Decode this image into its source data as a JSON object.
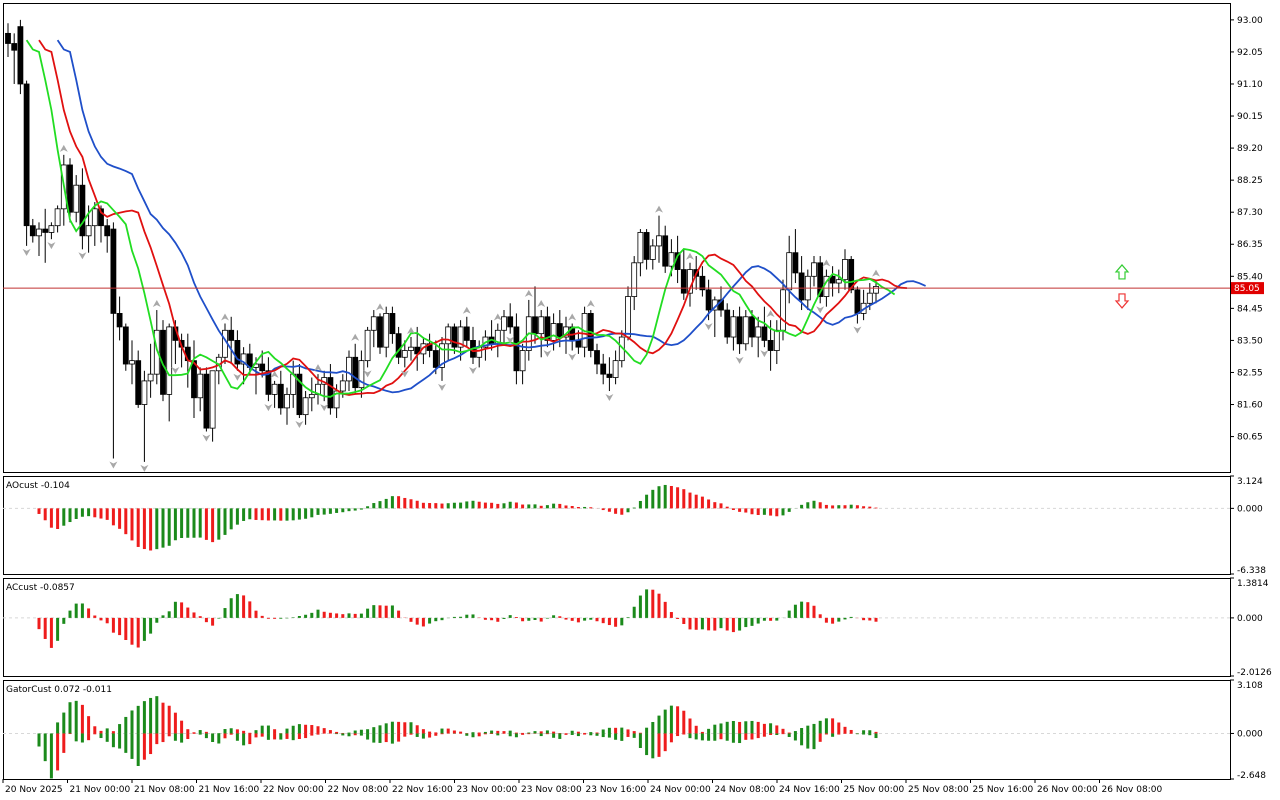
{
  "chart_data": {
    "type": "candlestick",
    "symbol_current_price": "85.05",
    "colors": {
      "bull_body": "#ffffff",
      "bear_body": "#000000",
      "wick": "#000000",
      "alligator_jaw": "#1f4fc9",
      "alligator_teeth": "#e01010",
      "alligator_lips": "#22dd22",
      "current_price_line": "#c03030",
      "price_tag_bg": "#e00000",
      "histo_up": "#1b8a1b",
      "histo_down": "#ee1c1c",
      "fractal_arrow": "#a8a8a8",
      "signal_up": "#33cc33",
      "signal_down": "#ee3333"
    },
    "price_axis_ticks": [
      "93.00",
      "92.05",
      "91.10",
      "90.15",
      "89.20",
      "88.25",
      "87.30",
      "86.35",
      "85.40",
      "84.45",
      "83.50",
      "82.55",
      "81.60",
      "80.65"
    ],
    "price_range": [
      79.6,
      93.5
    ],
    "time_axis_ticks": [
      "20 Nov 2025",
      "21 Nov 00:00",
      "21 Nov 08:00",
      "21 Nov 16:00",
      "22 Nov 00:00",
      "22 Nov 08:00",
      "22 Nov 16:00",
      "23 Nov 00:00",
      "23 Nov 08:00",
      "23 Nov 16:00",
      "24 Nov 00:00",
      "24 Nov 08:00",
      "24 Nov 16:00",
      "25 Nov 00:00",
      "25 Nov 08:00",
      "25 Nov 16:00",
      "26 Nov 00:00",
      "26 Nov 08:00"
    ],
    "candles": [
      {
        "o": 92.6,
        "h": 92.9,
        "l": 91.9,
        "c": 92.3
      },
      {
        "o": 92.3,
        "h": 92.6,
        "l": 91.1,
        "c": 92.1
      },
      {
        "o": 92.8,
        "h": 93.0,
        "l": 90.8,
        "c": 91.1
      },
      {
        "o": 91.1,
        "h": 91.2,
        "l": 86.3,
        "c": 86.9
      },
      {
        "o": 86.9,
        "h": 87.1,
        "l": 86.4,
        "c": 86.6
      },
      {
        "o": 86.6,
        "h": 87.0,
        "l": 86.0,
        "c": 86.8
      },
      {
        "o": 86.8,
        "h": 87.4,
        "l": 85.8,
        "c": 86.7
      },
      {
        "o": 86.7,
        "h": 87.0,
        "l": 86.5,
        "c": 86.9
      },
      {
        "o": 86.9,
        "h": 87.5,
        "l": 86.7,
        "c": 87.4
      },
      {
        "o": 87.4,
        "h": 89.0,
        "l": 86.9,
        "c": 88.7
      },
      {
        "o": 88.7,
        "h": 88.9,
        "l": 87.0,
        "c": 87.3
      },
      {
        "o": 87.3,
        "h": 88.4,
        "l": 87.0,
        "c": 88.1
      },
      {
        "o": 88.1,
        "h": 88.6,
        "l": 86.2,
        "c": 86.6
      },
      {
        "o": 86.6,
        "h": 87.5,
        "l": 86.1,
        "c": 86.9
      },
      {
        "o": 86.9,
        "h": 87.6,
        "l": 86.3,
        "c": 87.4
      },
      {
        "o": 87.4,
        "h": 87.5,
        "l": 86.4,
        "c": 86.9
      },
      {
        "o": 86.9,
        "h": 87.1,
        "l": 86.1,
        "c": 86.6
      },
      {
        "o": 86.8,
        "h": 87.0,
        "l": 80.0,
        "c": 84.3
      },
      {
        "o": 84.3,
        "h": 84.8,
        "l": 83.5,
        "c": 83.9
      },
      {
        "o": 83.9,
        "h": 84.0,
        "l": 82.6,
        "c": 82.8
      },
      {
        "o": 82.8,
        "h": 83.5,
        "l": 82.2,
        "c": 82.9
      },
      {
        "o": 82.9,
        "h": 83.2,
        "l": 81.5,
        "c": 81.6
      },
      {
        "o": 81.6,
        "h": 82.6,
        "l": 79.9,
        "c": 82.3
      },
      {
        "o": 82.3,
        "h": 83.4,
        "l": 81.8,
        "c": 82.5
      },
      {
        "o": 82.5,
        "h": 84.4,
        "l": 82.2,
        "c": 83.8
      },
      {
        "o": 83.8,
        "h": 84.1,
        "l": 81.7,
        "c": 81.9
      },
      {
        "o": 81.9,
        "h": 84.0,
        "l": 81.1,
        "c": 83.9
      },
      {
        "o": 83.9,
        "h": 84.1,
        "l": 82.8,
        "c": 83.5
      },
      {
        "o": 83.5,
        "h": 83.7,
        "l": 82.7,
        "c": 83.3
      },
      {
        "o": 83.3,
        "h": 83.7,
        "l": 82.1,
        "c": 82.9
      },
      {
        "o": 82.9,
        "h": 83.5,
        "l": 81.2,
        "c": 81.8
      },
      {
        "o": 81.8,
        "h": 82.7,
        "l": 81.4,
        "c": 82.5
      },
      {
        "o": 82.5,
        "h": 82.7,
        "l": 80.8,
        "c": 80.9
      },
      {
        "o": 80.9,
        "h": 82.6,
        "l": 80.5,
        "c": 82.6
      },
      {
        "o": 82.6,
        "h": 83.1,
        "l": 82.2,
        "c": 83.0
      },
      {
        "o": 83.0,
        "h": 84.0,
        "l": 82.8,
        "c": 83.8
      },
      {
        "o": 83.8,
        "h": 84.2,
        "l": 82.8,
        "c": 83.5
      },
      {
        "o": 83.5,
        "h": 83.8,
        "l": 82.6,
        "c": 82.8
      },
      {
        "o": 82.8,
        "h": 83.3,
        "l": 82.2,
        "c": 83.1
      },
      {
        "o": 83.1,
        "h": 83.4,
        "l": 82.5,
        "c": 82.7
      },
      {
        "o": 82.7,
        "h": 83.0,
        "l": 81.9,
        "c": 82.8
      },
      {
        "o": 82.8,
        "h": 83.2,
        "l": 82.4,
        "c": 82.6
      },
      {
        "o": 82.6,
        "h": 83.0,
        "l": 81.7,
        "c": 81.9
      },
      {
        "o": 81.9,
        "h": 82.3,
        "l": 81.5,
        "c": 82.2
      },
      {
        "o": 82.2,
        "h": 82.6,
        "l": 81.3,
        "c": 81.5
      },
      {
        "o": 81.5,
        "h": 82.1,
        "l": 81.0,
        "c": 81.9
      },
      {
        "o": 81.9,
        "h": 82.9,
        "l": 81.5,
        "c": 82.5
      },
      {
        "o": 82.5,
        "h": 82.8,
        "l": 81.2,
        "c": 81.3
      },
      {
        "o": 81.3,
        "h": 82.0,
        "l": 81.0,
        "c": 81.8
      },
      {
        "o": 81.8,
        "h": 82.4,
        "l": 81.4,
        "c": 81.9
      },
      {
        "o": 81.9,
        "h": 82.5,
        "l": 81.6,
        "c": 82.2
      },
      {
        "o": 82.2,
        "h": 82.6,
        "l": 81.7,
        "c": 82.4
      },
      {
        "o": 82.4,
        "h": 82.8,
        "l": 81.3,
        "c": 81.5
      },
      {
        "o": 81.5,
        "h": 82.2,
        "l": 81.2,
        "c": 82.0
      },
      {
        "o": 82.0,
        "h": 82.5,
        "l": 81.8,
        "c": 82.3
      },
      {
        "o": 82.3,
        "h": 83.2,
        "l": 82.0,
        "c": 83.0
      },
      {
        "o": 83.0,
        "h": 83.4,
        "l": 81.9,
        "c": 82.1
      },
      {
        "o": 82.1,
        "h": 83.2,
        "l": 81.8,
        "c": 82.9
      },
      {
        "o": 82.9,
        "h": 83.9,
        "l": 82.7,
        "c": 83.8
      },
      {
        "o": 83.8,
        "h": 84.4,
        "l": 83.3,
        "c": 84.2
      },
      {
        "o": 84.2,
        "h": 84.3,
        "l": 83.1,
        "c": 83.3
      },
      {
        "o": 83.3,
        "h": 84.5,
        "l": 83.0,
        "c": 84.3
      },
      {
        "o": 84.3,
        "h": 84.5,
        "l": 83.4,
        "c": 83.7
      },
      {
        "o": 83.7,
        "h": 83.9,
        "l": 82.8,
        "c": 83.0
      },
      {
        "o": 83.0,
        "h": 83.5,
        "l": 82.7,
        "c": 83.2
      },
      {
        "o": 83.2,
        "h": 83.6,
        "l": 82.9,
        "c": 83.3
      },
      {
        "o": 83.3,
        "h": 83.9,
        "l": 82.6,
        "c": 83.1
      },
      {
        "o": 83.1,
        "h": 83.6,
        "l": 82.8,
        "c": 83.4
      },
      {
        "o": 83.4,
        "h": 83.7,
        "l": 83.0,
        "c": 83.2
      },
      {
        "o": 83.2,
        "h": 83.5,
        "l": 82.5,
        "c": 82.7
      },
      {
        "o": 82.7,
        "h": 83.6,
        "l": 82.3,
        "c": 83.4
      },
      {
        "o": 83.4,
        "h": 84.0,
        "l": 82.9,
        "c": 83.9
      },
      {
        "o": 83.9,
        "h": 84.0,
        "l": 83.1,
        "c": 83.3
      },
      {
        "o": 83.3,
        "h": 84.1,
        "l": 82.9,
        "c": 83.9
      },
      {
        "o": 83.9,
        "h": 84.2,
        "l": 83.3,
        "c": 83.5
      },
      {
        "o": 83.5,
        "h": 83.9,
        "l": 82.8,
        "c": 83.0
      },
      {
        "o": 83.0,
        "h": 83.5,
        "l": 82.7,
        "c": 83.3
      },
      {
        "o": 83.3,
        "h": 83.8,
        "l": 82.9,
        "c": 83.6
      },
      {
        "o": 83.6,
        "h": 84.1,
        "l": 83.2,
        "c": 83.4
      },
      {
        "o": 83.4,
        "h": 84.0,
        "l": 83.0,
        "c": 83.8
      },
      {
        "o": 83.8,
        "h": 84.4,
        "l": 83.4,
        "c": 84.2
      },
      {
        "o": 84.2,
        "h": 84.6,
        "l": 83.7,
        "c": 83.9
      },
      {
        "o": 83.9,
        "h": 84.3,
        "l": 82.2,
        "c": 82.6
      },
      {
        "o": 82.6,
        "h": 83.4,
        "l": 82.2,
        "c": 83.2
      },
      {
        "o": 83.2,
        "h": 84.7,
        "l": 82.9,
        "c": 84.2
      },
      {
        "o": 84.2,
        "h": 85.1,
        "l": 83.4,
        "c": 83.7
      },
      {
        "o": 83.7,
        "h": 84.4,
        "l": 83.0,
        "c": 84.2
      },
      {
        "o": 84.2,
        "h": 84.5,
        "l": 83.3,
        "c": 83.5
      },
      {
        "o": 83.5,
        "h": 84.3,
        "l": 83.2,
        "c": 84.0
      },
      {
        "o": 84.0,
        "h": 84.4,
        "l": 83.3,
        "c": 83.6
      },
      {
        "o": 83.6,
        "h": 84.2,
        "l": 83.1,
        "c": 83.9
      },
      {
        "o": 83.9,
        "h": 84.0,
        "l": 83.2,
        "c": 83.5
      },
      {
        "o": 83.5,
        "h": 83.8,
        "l": 83.1,
        "c": 83.3
      },
      {
        "o": 83.3,
        "h": 84.5,
        "l": 83.0,
        "c": 84.3
      },
      {
        "o": 84.3,
        "h": 84.4,
        "l": 83.0,
        "c": 83.2
      },
      {
        "o": 83.2,
        "h": 83.4,
        "l": 82.5,
        "c": 82.8
      },
      {
        "o": 82.8,
        "h": 83.1,
        "l": 82.2,
        "c": 82.5
      },
      {
        "o": 82.5,
        "h": 83.0,
        "l": 82.0,
        "c": 82.4
      },
      {
        "o": 82.4,
        "h": 83.2,
        "l": 82.2,
        "c": 82.9
      },
      {
        "o": 82.9,
        "h": 83.8,
        "l": 82.7,
        "c": 83.6
      },
      {
        "o": 83.6,
        "h": 85.1,
        "l": 83.5,
        "c": 84.8
      },
      {
        "o": 84.8,
        "h": 86.0,
        "l": 84.4,
        "c": 85.8
      },
      {
        "o": 85.8,
        "h": 86.8,
        "l": 85.4,
        "c": 86.7
      },
      {
        "o": 86.7,
        "h": 86.8,
        "l": 85.6,
        "c": 85.9
      },
      {
        "o": 85.9,
        "h": 86.5,
        "l": 85.6,
        "c": 86.3
      },
      {
        "o": 86.3,
        "h": 87.2,
        "l": 85.8,
        "c": 86.6
      },
      {
        "o": 86.6,
        "h": 86.9,
        "l": 85.5,
        "c": 85.7
      },
      {
        "o": 85.7,
        "h": 86.5,
        "l": 85.4,
        "c": 86.1
      },
      {
        "o": 86.1,
        "h": 86.6,
        "l": 85.2,
        "c": 85.6
      },
      {
        "o": 85.6,
        "h": 86.2,
        "l": 84.7,
        "c": 84.9
      },
      {
        "o": 84.9,
        "h": 85.8,
        "l": 84.5,
        "c": 85.6
      },
      {
        "o": 85.6,
        "h": 86.0,
        "l": 85.0,
        "c": 85.4
      },
      {
        "o": 85.4,
        "h": 85.7,
        "l": 84.8,
        "c": 85.0
      },
      {
        "o": 85.0,
        "h": 85.3,
        "l": 84.1,
        "c": 84.4
      },
      {
        "o": 84.4,
        "h": 84.8,
        "l": 83.6,
        "c": 84.7
      },
      {
        "o": 84.7,
        "h": 85.1,
        "l": 84.2,
        "c": 84.4
      },
      {
        "o": 84.4,
        "h": 84.6,
        "l": 83.4,
        "c": 83.6
      },
      {
        "o": 83.6,
        "h": 84.4,
        "l": 83.2,
        "c": 84.2
      },
      {
        "o": 84.2,
        "h": 84.5,
        "l": 83.1,
        "c": 83.4
      },
      {
        "o": 83.4,
        "h": 84.4,
        "l": 83.2,
        "c": 84.2
      },
      {
        "o": 84.2,
        "h": 84.4,
        "l": 83.3,
        "c": 83.6
      },
      {
        "o": 83.6,
        "h": 84.2,
        "l": 83.0,
        "c": 83.9
      },
      {
        "o": 83.9,
        "h": 84.5,
        "l": 83.3,
        "c": 83.5
      },
      {
        "o": 83.5,
        "h": 84.1,
        "l": 82.6,
        "c": 83.2
      },
      {
        "o": 83.2,
        "h": 84.1,
        "l": 82.8,
        "c": 83.8
      },
      {
        "o": 83.8,
        "h": 85.3,
        "l": 83.5,
        "c": 85.0
      },
      {
        "o": 85.0,
        "h": 86.6,
        "l": 84.6,
        "c": 86.1
      },
      {
        "o": 86.1,
        "h": 86.8,
        "l": 85.2,
        "c": 85.5
      },
      {
        "o": 85.5,
        "h": 86.0,
        "l": 84.4,
        "c": 84.7
      },
      {
        "o": 84.7,
        "h": 85.6,
        "l": 84.4,
        "c": 85.4
      },
      {
        "o": 85.4,
        "h": 86.0,
        "l": 85.1,
        "c": 85.8
      },
      {
        "o": 85.8,
        "h": 86.0,
        "l": 84.6,
        "c": 84.8
      },
      {
        "o": 84.8,
        "h": 85.6,
        "l": 84.5,
        "c": 85.4
      },
      {
        "o": 85.4,
        "h": 85.7,
        "l": 84.8,
        "c": 85.2
      },
      {
        "o": 85.2,
        "h": 85.6,
        "l": 84.9,
        "c": 85.3
      },
      {
        "o": 85.3,
        "h": 86.2,
        "l": 85.0,
        "c": 85.9
      },
      {
        "o": 85.9,
        "h": 86.0,
        "l": 84.9,
        "c": 85.0
      },
      {
        "o": 85.0,
        "h": 85.1,
        "l": 84.0,
        "c": 84.3
      },
      {
        "o": 84.3,
        "h": 85.0,
        "l": 84.1,
        "c": 84.6
      },
      {
        "o": 84.6,
        "h": 85.2,
        "l": 84.4,
        "c": 84.9
      },
      {
        "o": 84.9,
        "h": 85.3,
        "l": 84.6,
        "c": 85.1
      }
    ],
    "fractals_up_idx": [
      9,
      24,
      35,
      43,
      50,
      56,
      60,
      65,
      74,
      79,
      84,
      86,
      91,
      94,
      105,
      110,
      123,
      132,
      140
    ],
    "fractals_down_idx": [
      3,
      7,
      12,
      17,
      22,
      27,
      32,
      37,
      42,
      47,
      51,
      58,
      64,
      70,
      75,
      81,
      87,
      91,
      97,
      113,
      118,
      122,
      131,
      137,
      143
    ],
    "signal_arrows": [
      {
        "type": "up",
        "value": 85.5
      },
      {
        "type": "down",
        "value": 84.7
      }
    ],
    "indicators": [
      {
        "name": "AOcust",
        "label": "AOcust -0.104",
        "ticks": [
          "3.124",
          "0.000",
          "-6.338"
        ],
        "range": [
          -6.338,
          3.124
        ]
      },
      {
        "name": "ACcust",
        "label": "ACcust -0.0857",
        "ticks": [
          "1.3814",
          "0.000",
          "-2.0126"
        ],
        "range": [
          -2.0126,
          1.3814
        ]
      },
      {
        "name": "GatorCust",
        "label": "GatorCust 0.072 -0.011",
        "ticks": [
          "3.108",
          "0.000",
          "-2.648"
        ],
        "range": [
          -2.648,
          3.108
        ]
      }
    ]
  }
}
